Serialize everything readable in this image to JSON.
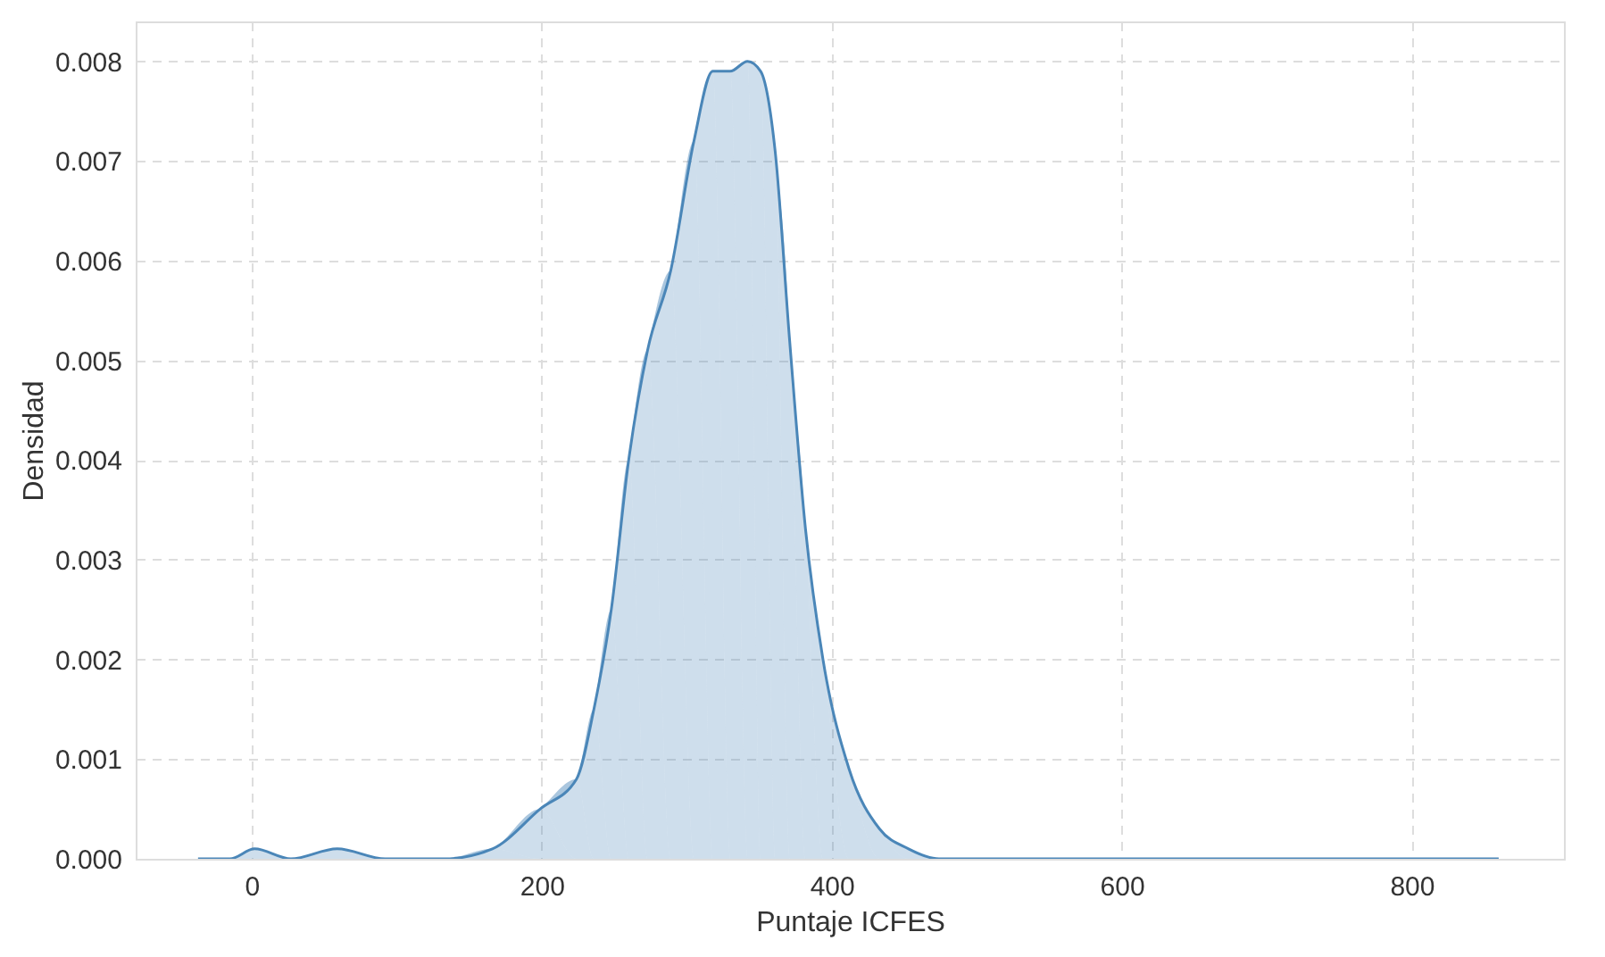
{
  "chart_data": {
    "type": "area",
    "xlabel": "Puntaje ICFES",
    "ylabel": "Densidad",
    "x": [
      -37,
      -15,
      2,
      27,
      59,
      92,
      133,
      166,
      199,
      224,
      236,
      248,
      260,
      273,
      289,
      305,
      318,
      330,
      342,
      351,
      361,
      371,
      382,
      394,
      412,
      433,
      453,
      474,
      500,
      640,
      650,
      660,
      710,
      720,
      730,
      860
    ],
    "series": [
      {
        "color": "#4a86b8",
        "values": [
          0,
          0,
          0.0001,
          0,
          0.0001,
          0,
          0,
          0.0001,
          0.0005,
          0.0008,
          0.0015,
          0.0025,
          0.004,
          0.0051,
          0.0059,
          0.0072,
          0.0079,
          0.0079,
          0.008,
          0.0079,
          0.0071,
          0.0052,
          0.0033,
          0.002,
          0.0009,
          0.0003,
          0.0001,
          0,
          0,
          0,
          0,
          0,
          0,
          0,
          0,
          0
        ]
      }
    ],
    "xlim": [
      -80,
      905
    ],
    "xticks": [
      0,
      200,
      400,
      600,
      800
    ],
    "ylim": [
      0,
      0.0084
    ],
    "yticks": [
      {
        "value": 0,
        "label": "0.000"
      },
      {
        "value": 0.001,
        "label": "0.001"
      },
      {
        "value": 0.002,
        "label": "0.002"
      },
      {
        "value": 0.003,
        "label": "0.003"
      },
      {
        "value": 0.004,
        "label": "0.004"
      },
      {
        "value": 0.005,
        "label": "0.005"
      },
      {
        "value": 0.006,
        "label": "0.006"
      },
      {
        "value": 0.007,
        "label": "0.007"
      },
      {
        "value": 0.008,
        "label": "0.008"
      }
    ],
    "grid": true,
    "line_style": "solid",
    "marker": "none"
  }
}
